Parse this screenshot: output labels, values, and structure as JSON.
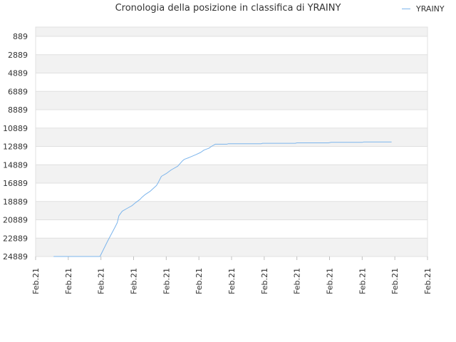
{
  "chart_data": {
    "type": "line",
    "title": "Cronologia della posizione in classifica di YRAINY",
    "xlabel": "",
    "ylabel": "",
    "y_axis_reversed": true,
    "ylim": [
      889,
      24889
    ],
    "y_ticks": [
      "889",
      "2889",
      "4889",
      "6889",
      "8889",
      "10889",
      "12889",
      "14889",
      "16889",
      "18889",
      "20889",
      "22889",
      "24889"
    ],
    "x_ticks": [
      "Feb.21",
      "Feb.21",
      "Feb.21",
      "Feb.21",
      "Feb.21",
      "Feb.21",
      "Feb.21",
      "Feb.21",
      "Feb.21",
      "Feb.21",
      "Feb.21",
      "Feb.21",
      "Feb.21"
    ],
    "x_range": [
      0,
      12
    ],
    "grid": true,
    "legend_position": "top-right",
    "series_color": "#7cb5ec",
    "series": [
      {
        "name": "YRAINY",
        "x": [
          0.55,
          1.0,
          1.5,
          1.97,
          2.2,
          2.43,
          2.5,
          2.55,
          2.65,
          2.8,
          2.95,
          3.05,
          3.2,
          3.25,
          3.35,
          3.5,
          3.7,
          3.75,
          3.85,
          4.0,
          4.15,
          4.35,
          4.5,
          4.55,
          4.7,
          4.9,
          5.05,
          5.15,
          5.2,
          5.3,
          5.4,
          5.5,
          5.85,
          5.9,
          6.3,
          6.9,
          6.95,
          7.5,
          7.95,
          8.0,
          8.5,
          8.97,
          9.05,
          9.5,
          10.0,
          10.05,
          10.5,
          10.9
        ],
        "y": [
          24889,
          24889,
          24889,
          24889,
          23250,
          21700,
          21200,
          20450,
          19950,
          19650,
          19350,
          19050,
          18650,
          18450,
          18150,
          17800,
          17150,
          16850,
          16150,
          15850,
          15450,
          15050,
          14450,
          14300,
          14100,
          13800,
          13550,
          13300,
          13220,
          13100,
          12850,
          12650,
          12650,
          12600,
          12600,
          12600,
          12550,
          12550,
          12550,
          12500,
          12500,
          12500,
          12450,
          12450,
          12450,
          12400,
          12400,
          12400
        ]
      }
    ]
  }
}
